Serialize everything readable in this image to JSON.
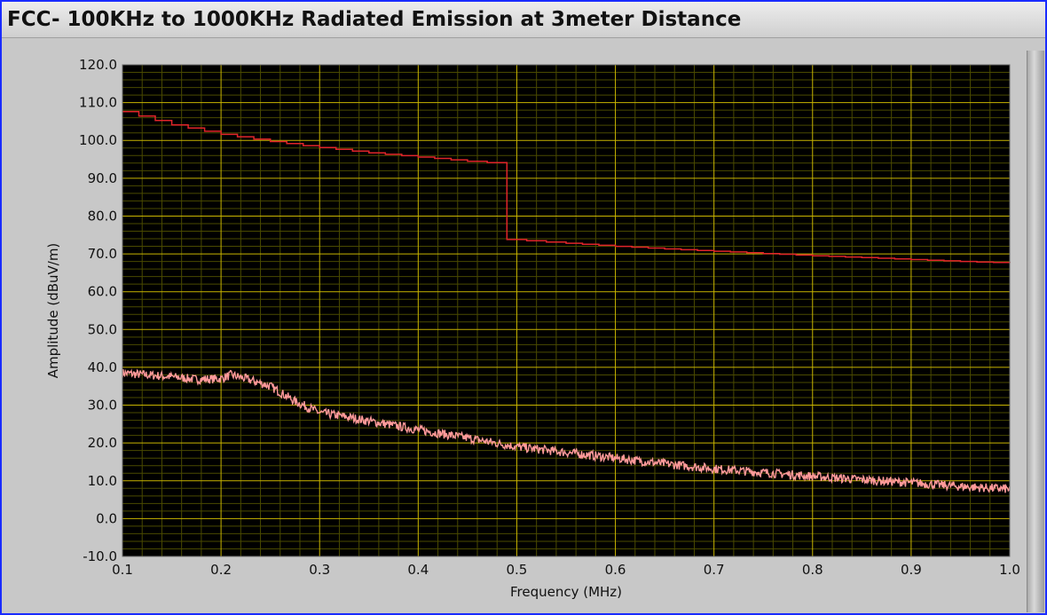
{
  "window": {
    "title": "FCC- 100KHz to 1000KHz Radiated Emission at 3meter Distance"
  },
  "colors": {
    "plot_background": "#000000",
    "major_grid": "#c8b400",
    "minor_grid": "#4a4a00",
    "limit_line": "#e0242a",
    "measurement": "#ff9a9a"
  },
  "chart_data": {
    "type": "line",
    "xlabel": "Frequency (MHz)",
    "ylabel": "Amplitude (dBuV/m)",
    "xlim": [
      0.1,
      1.0
    ],
    "ylim": [
      -10,
      120
    ],
    "x_ticks": [
      "0.1",
      "0.2",
      "0.3",
      "0.4",
      "0.5",
      "0.6",
      "0.7",
      "0.8",
      "0.9",
      "1.0"
    ],
    "y_ticks": [
      "-10.0",
      "0.0",
      "10.0",
      "20.0",
      "30.0",
      "40.0",
      "50.0",
      "60.0",
      "70.0",
      "80.0",
      "90.0",
      "100.0",
      "110.0",
      "120.0"
    ],
    "grid": "major and minor",
    "series": [
      {
        "color": "#e0242a",
        "x": [
          0.1,
          0.15,
          0.2,
          0.25,
          0.3,
          0.35,
          0.4,
          0.45,
          0.49,
          0.49,
          0.55,
          0.6,
          0.65,
          0.7,
          0.75,
          0.8,
          0.85,
          0.9,
          0.95,
          1.0
        ],
        "y": [
          107.6,
          104.1,
          101.6,
          99.7,
          98.1,
          96.7,
          95.6,
          94.5,
          93.8,
          73.8,
          72.8,
          72.0,
          71.3,
          70.7,
          70.1,
          69.5,
          69.0,
          68.5,
          68.0,
          67.6
        ]
      },
      {
        "color": "#ff9a9a",
        "x": [
          0.1,
          0.125,
          0.15,
          0.175,
          0.2,
          0.21,
          0.225,
          0.25,
          0.275,
          0.3,
          0.325,
          0.35,
          0.4,
          0.45,
          0.5,
          0.55,
          0.6,
          0.65,
          0.7,
          0.75,
          0.8,
          0.85,
          0.9,
          0.95,
          1.0
        ],
        "y": [
          38.5,
          38.0,
          37.5,
          36.8,
          37.0,
          38.0,
          37.0,
          35.0,
          31.0,
          28.0,
          27.0,
          25.8,
          23.5,
          21.3,
          19.0,
          17.5,
          16.0,
          14.5,
          13.2,
          12.2,
          11.2,
          10.3,
          9.5,
          8.5,
          7.8
        ]
      }
    ]
  }
}
